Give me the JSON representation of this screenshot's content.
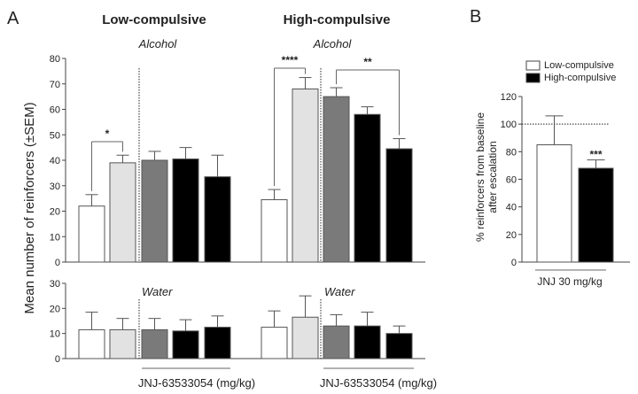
{
  "chart_data": [
    {
      "type": "bar",
      "panel": "A",
      "ylabel": "Mean number of reinforcers (±SEM)",
      "groups": [
        "Low-compulsive",
        "High-compulsive"
      ],
      "xlabel": "JNJ-63533054 (mg/kg)",
      "subplots": [
        {
          "title": "Alcohol",
          "ylim": [
            0,
            80
          ],
          "yticks": [
            0,
            10,
            20,
            30,
            40,
            50,
            60,
            70,
            80
          ],
          "series_colors": [
            "#ffffff",
            "#e2e2e2",
            "#7a7a7a",
            "#000000",
            "#000000"
          ],
          "values": {
            "Low-compulsive": [
              22,
              39,
              40,
              40.5,
              33.5
            ],
            "High-compulsive": [
              24.5,
              68,
              65,
              58,
              44.5
            ]
          },
          "sem_upper": {
            "Low-compulsive": [
              26.5,
              42,
              43.5,
              45,
              42
            ],
            "High-compulsive": [
              28.5,
              72.5,
              68.5,
              61,
              48.5
            ]
          },
          "significance": [
            {
              "group": "Low-compulsive",
              "from_bar": 1,
              "to_bar": 2,
              "label": "*"
            },
            {
              "group": "High-compulsive",
              "from_bar": 1,
              "to_bar": 2,
              "label": "****"
            },
            {
              "group": "High-compulsive",
              "from_bar": 3,
              "to_bar": 5,
              "label": "**"
            }
          ]
        },
        {
          "title": "Water",
          "ylim": [
            0,
            30
          ],
          "yticks": [
            0,
            10,
            20,
            30
          ],
          "series_colors": [
            "#ffffff",
            "#e2e2e2",
            "#7a7a7a",
            "#000000",
            "#000000"
          ],
          "values": {
            "Low-compulsive": [
              11.5,
              11.5,
              11.5,
              11,
              12.5
            ],
            "High-compulsive": [
              12.5,
              16.5,
              13,
              13,
              10
            ]
          },
          "sem_upper": {
            "Low-compulsive": [
              18.5,
              16,
              16,
              15.5,
              17
            ],
            "High-compulsive": [
              19,
              25,
              17.5,
              18.5,
              13
            ]
          }
        }
      ]
    },
    {
      "type": "bar",
      "panel": "B",
      "ylabel_lines": [
        "% reinforcers from baseline",
        "after escalation"
      ],
      "xlabel": "JNJ 30 mg/kg",
      "ylim": [
        0,
        120
      ],
      "yticks": [
        0,
        20,
        40,
        60,
        80,
        100,
        120
      ],
      "reference_line": 100,
      "legend": [
        {
          "name": "Low-compulsive",
          "color": "#ffffff"
        },
        {
          "name": "High-compulsive",
          "color": "#000000"
        }
      ],
      "legend_position": "top",
      "values": [
        85,
        68
      ],
      "sem_upper": [
        106,
        74
      ],
      "significance_labels": [
        "",
        "***"
      ]
    }
  ]
}
